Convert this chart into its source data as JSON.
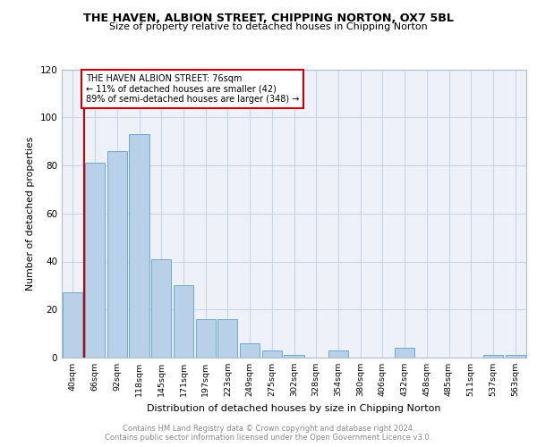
{
  "title1": "THE HAVEN, ALBION STREET, CHIPPING NORTON, OX7 5BL",
  "title2": "Size of property relative to detached houses in Chipping Norton",
  "xlabel": "Distribution of detached houses by size in Chipping Norton",
  "ylabel": "Number of detached properties",
  "bar_labels": [
    "40sqm",
    "66sqm",
    "92sqm",
    "118sqm",
    "145sqm",
    "171sqm",
    "197sqm",
    "223sqm",
    "249sqm",
    "275sqm",
    "302sqm",
    "328sqm",
    "354sqm",
    "380sqm",
    "406sqm",
    "432sqm",
    "458sqm",
    "485sqm",
    "511sqm",
    "537sqm",
    "563sqm"
  ],
  "bar_values": [
    27,
    81,
    86,
    93,
    41,
    30,
    16,
    16,
    6,
    3,
    1,
    0,
    3,
    0,
    0,
    4,
    0,
    0,
    0,
    1,
    1
  ],
  "bar_color": "#b8d0e8",
  "bar_edge_color": "#6aaad4",
  "annotation_line1": "THE HAVEN ALBION STREET: 76sqm",
  "annotation_line2": "← 11% of detached houses are smaller (42)",
  "annotation_line3": "89% of semi-detached houses are larger (348) →",
  "vline_color": "#cc0000",
  "ylim": [
    0,
    120
  ],
  "yticks": [
    0,
    20,
    40,
    60,
    80,
    100,
    120
  ],
  "grid_color": "#c8d4e8",
  "footer_text": "Contains HM Land Registry data © Crown copyright and database right 2024.\nContains public sector information licensed under the Open Government Licence v3.0.",
  "bg_color": "#eef2f8"
}
